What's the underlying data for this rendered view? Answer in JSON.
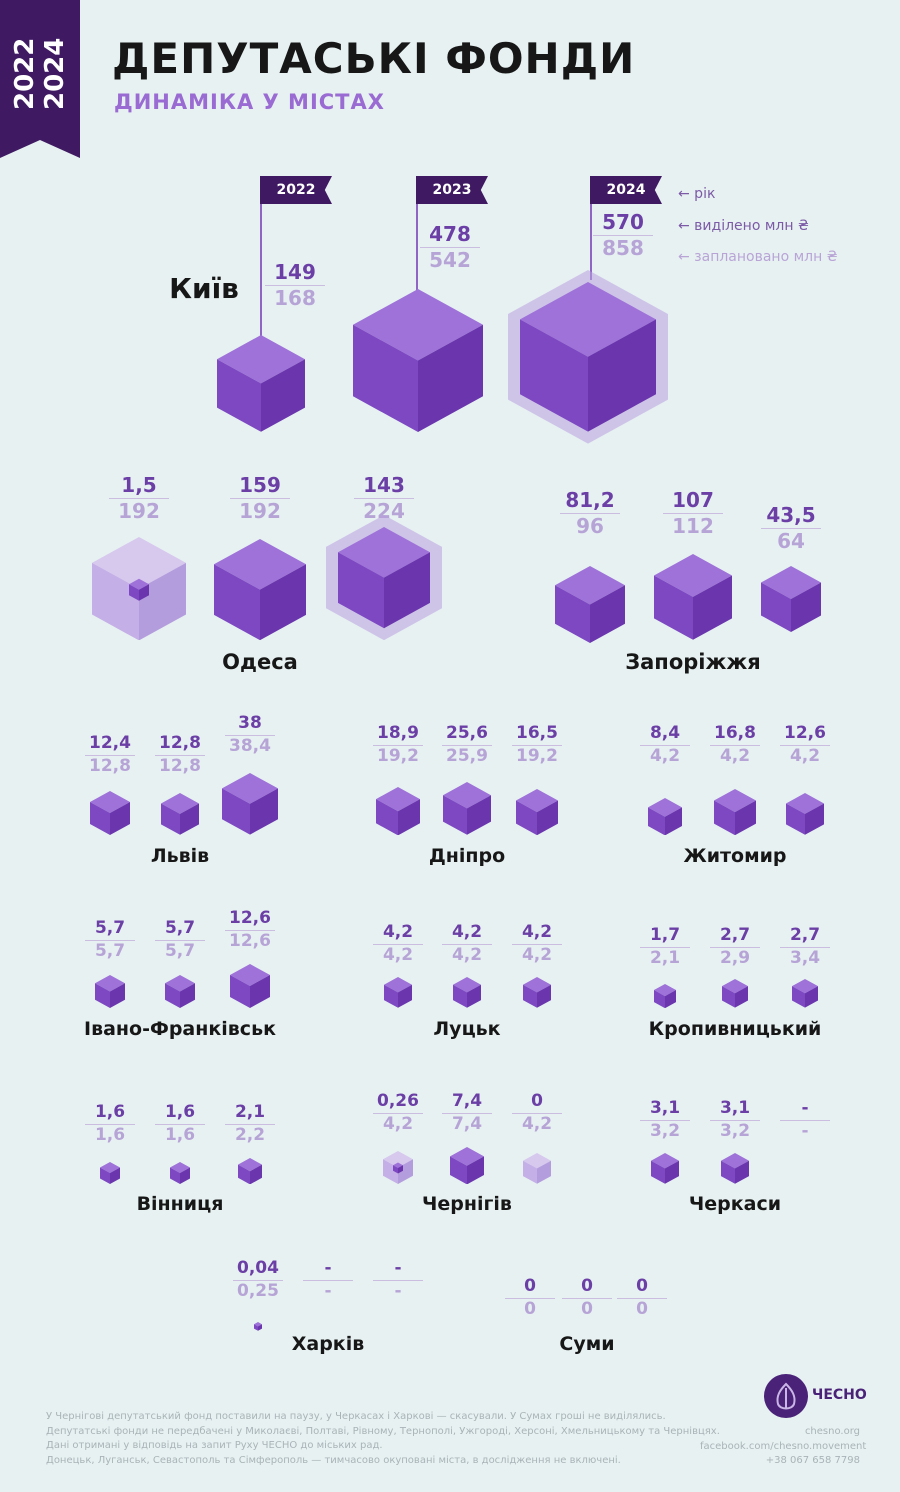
{
  "header": {
    "year_start": "2022",
    "year_end": "2024",
    "title": "ДЕПУТАСЬКІ ФОНДИ",
    "subtitle": "ДИНАМІКА У МІСТАХ"
  },
  "legend": {
    "year": "← рік",
    "allocated": "← виділено млн ₴",
    "planned": "← заплановано млн ₴"
  },
  "years": [
    "2022",
    "2023",
    "2024"
  ],
  "colors": {
    "accent": "#7b47c0",
    "dark": "#3f1a63",
    "light": "#b7a4d6",
    "background": "#e7f1f2"
  },
  "cities": [
    {
      "name": "Київ",
      "values": [
        {
          "allocated": "149",
          "planned": "168"
        },
        {
          "allocated": "478",
          "planned": "542"
        },
        {
          "allocated": "570",
          "planned": "858"
        }
      ]
    },
    {
      "name": "Одеса",
      "values": [
        {
          "allocated": "1,5",
          "planned": "192"
        },
        {
          "allocated": "159",
          "planned": "192"
        },
        {
          "allocated": "143",
          "planned": "224"
        }
      ]
    },
    {
      "name": "Запоріжжя",
      "values": [
        {
          "allocated": "81,2",
          "planned": "96"
        },
        {
          "allocated": "107",
          "planned": "112"
        },
        {
          "allocated": "43,5",
          "planned": "64"
        }
      ]
    },
    {
      "name": "Львів",
      "values": [
        {
          "allocated": "12,4",
          "planned": "12,8"
        },
        {
          "allocated": "12,8",
          "planned": "12,8"
        },
        {
          "allocated": "38",
          "planned": "38,4"
        }
      ]
    },
    {
      "name": "Дніпро",
      "values": [
        {
          "allocated": "18,9",
          "planned": "19,2"
        },
        {
          "allocated": "25,6",
          "planned": "25,9"
        },
        {
          "allocated": "16,5",
          "planned": "19,2"
        }
      ]
    },
    {
      "name": "Житомир",
      "values": [
        {
          "allocated": "8,4",
          "planned": "4,2"
        },
        {
          "allocated": "16,8",
          "planned": "4,2"
        },
        {
          "allocated": "12,6",
          "planned": "4,2"
        }
      ]
    },
    {
      "name": "Івано-Франківськ",
      "values": [
        {
          "allocated": "5,7",
          "planned": "5,7"
        },
        {
          "allocated": "5,7",
          "planned": "5,7"
        },
        {
          "allocated": "12,6",
          "planned": "12,6"
        }
      ]
    },
    {
      "name": "Луцьк",
      "values": [
        {
          "allocated": "4,2",
          "planned": "4,2"
        },
        {
          "allocated": "4,2",
          "planned": "4,2"
        },
        {
          "allocated": "4,2",
          "planned": "4,2"
        }
      ]
    },
    {
      "name": "Кропивницький",
      "values": [
        {
          "allocated": "1,7",
          "planned": "2,1"
        },
        {
          "allocated": "2,7",
          "planned": "2,9"
        },
        {
          "allocated": "2,7",
          "planned": "3,4"
        }
      ]
    },
    {
      "name": "Вінниця",
      "values": [
        {
          "allocated": "1,6",
          "planned": "1,6"
        },
        {
          "allocated": "1,6",
          "planned": "1,6"
        },
        {
          "allocated": "2,1",
          "planned": "2,2"
        }
      ]
    },
    {
      "name": "Чернігів",
      "values": [
        {
          "allocated": "0,26",
          "planned": "4,2"
        },
        {
          "allocated": "7,4",
          "planned": "7,4"
        },
        {
          "allocated": "0",
          "planned": "4,2"
        }
      ]
    },
    {
      "name": "Черкаси",
      "values": [
        {
          "allocated": "3,1",
          "planned": "3,2"
        },
        {
          "allocated": "3,1",
          "planned": "3,2"
        },
        {
          "allocated": "-",
          "planned": "-"
        }
      ]
    },
    {
      "name": "Харків",
      "values": [
        {
          "allocated": "0,04",
          "planned": "0,25"
        },
        {
          "allocated": "-",
          "planned": "-"
        },
        {
          "allocated": "-",
          "planned": "-"
        }
      ]
    },
    {
      "name": "Суми",
      "values": [
        {
          "allocated": "0",
          "planned": "0"
        },
        {
          "allocated": "0",
          "planned": "0"
        },
        {
          "allocated": "0",
          "planned": "0"
        }
      ]
    }
  ],
  "footer": {
    "notes": [
      "У Чернігові депутатський фонд поставили на паузу, у Черкасах і Харкові — скасували. У Сумах гроші не виділялись.",
      "Депутатські фонди не передбачені у Миколаєві, Полтаві, Рівному, Тернополі, Ужгороді, Херсоні, Хмельницькому та Чернівцях.",
      "Дані отримані у відповідь на запит Руху ЧЕСНО до міських рад.",
      "Донецьк, Луганськ, Севастополь та Сімферополь — тимчасово окуповані міста, в дослідження не включені."
    ],
    "logo": "ЧЕСНО",
    "site": "chesno.org",
    "facebook": "facebook.com/chesno.movement",
    "phone": "+38 067 658 7798"
  }
}
